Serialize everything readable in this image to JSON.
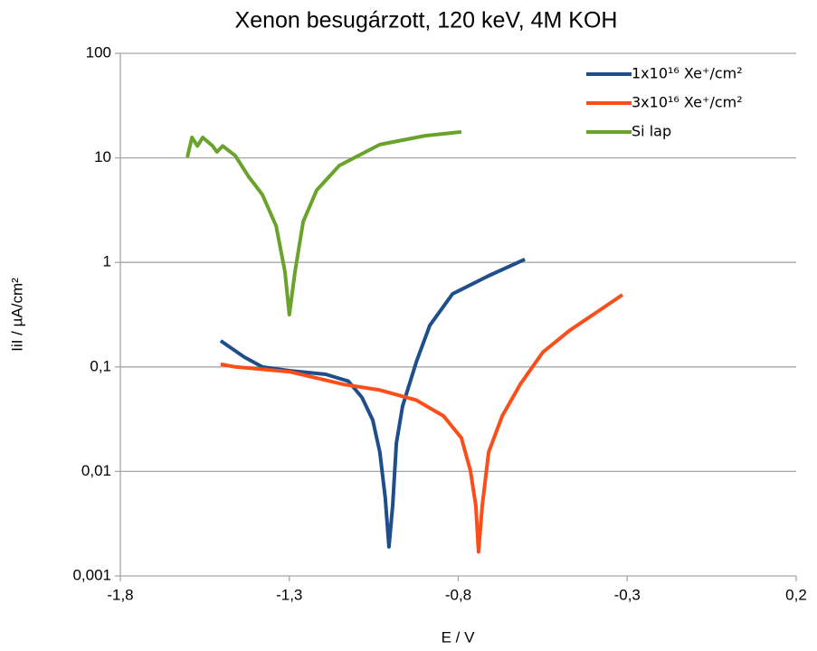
{
  "chart_data": {
    "type": "line",
    "title": "Xenon besugárzott, 120 keV, 4M KOH",
    "xlabel": "E / V",
    "ylabel": "IiI / µA/cm²",
    "log_y": true,
    "grid": "y",
    "legend": "upper right",
    "xlim": [
      -1.8,
      0.2
    ],
    "xticks": [
      {
        "value": -1.8,
        "label": "-1,8"
      },
      {
        "value": -1.3,
        "label": "-1,3"
      },
      {
        "value": -0.8,
        "label": "-0,8"
      },
      {
        "value": -0.3,
        "label": "-0,3"
      },
      {
        "value": 0.2,
        "label": "0,2"
      }
    ],
    "ylim": [
      0.001,
      100
    ],
    "yticks": [
      {
        "value": 0.001,
        "label": "0,001"
      },
      {
        "value": 0.01,
        "label": "0,01"
      },
      {
        "value": 0.1,
        "label": "0,1"
      },
      1,
      10,
      100
    ],
    "series": [
      {
        "name": "1x10¹⁶ Xe⁺/cm²",
        "color": "#1f4e8c",
        "x": [
          -1.503,
          -1.433,
          -1.38,
          -1.3,
          -1.192,
          -1.125,
          -1.085,
          -1.053,
          -1.032,
          -1.016,
          -1.005,
          -0.994,
          -0.983,
          -0.965,
          -0.924,
          -0.884,
          -0.817,
          -0.71,
          -0.603
        ],
        "values": [
          0.178,
          0.124,
          0.1,
          0.092,
          0.085,
          0.073,
          0.051,
          0.031,
          0.0153,
          0.0056,
          0.0019,
          0.0047,
          0.0186,
          0.042,
          0.112,
          0.25,
          0.5,
          0.745,
          1.07
        ]
      },
      {
        "name": "3x10¹⁶ Xe⁺/cm²",
        "color": "#fc4e1a",
        "x": [
          -1.503,
          -1.46,
          -1.3,
          -1.139,
          -1.032,
          -0.924,
          -0.844,
          -0.791,
          -0.764,
          -0.748,
          -0.74,
          -0.729,
          -0.71,
          -0.67,
          -0.617,
          -0.55,
          -0.469,
          -0.389,
          -0.314
        ],
        "values": [
          0.106,
          0.1,
          0.09,
          0.068,
          0.06,
          0.048,
          0.034,
          0.021,
          0.0102,
          0.0047,
          0.0017,
          0.0047,
          0.0153,
          0.034,
          0.068,
          0.138,
          0.225,
          0.336,
          0.49
        ]
      },
      {
        "name": "Si lap",
        "color": "#6aa32b",
        "x": [
          -1.602,
          -1.588,
          -1.572,
          -1.556,
          -1.527,
          -1.514,
          -1.497,
          -1.46,
          -1.42,
          -1.38,
          -1.339,
          -1.313,
          -1.3,
          -1.283,
          -1.259,
          -1.219,
          -1.152,
          -1.032,
          -0.898,
          -0.791
        ],
        "values": [
          10.1,
          15.7,
          13,
          15.7,
          13,
          11.4,
          13,
          10.5,
          6.6,
          4.46,
          2.23,
          0.82,
          0.316,
          0.82,
          2.45,
          4.9,
          8.45,
          13.4,
          16.3,
          17.7
        ]
      }
    ]
  }
}
